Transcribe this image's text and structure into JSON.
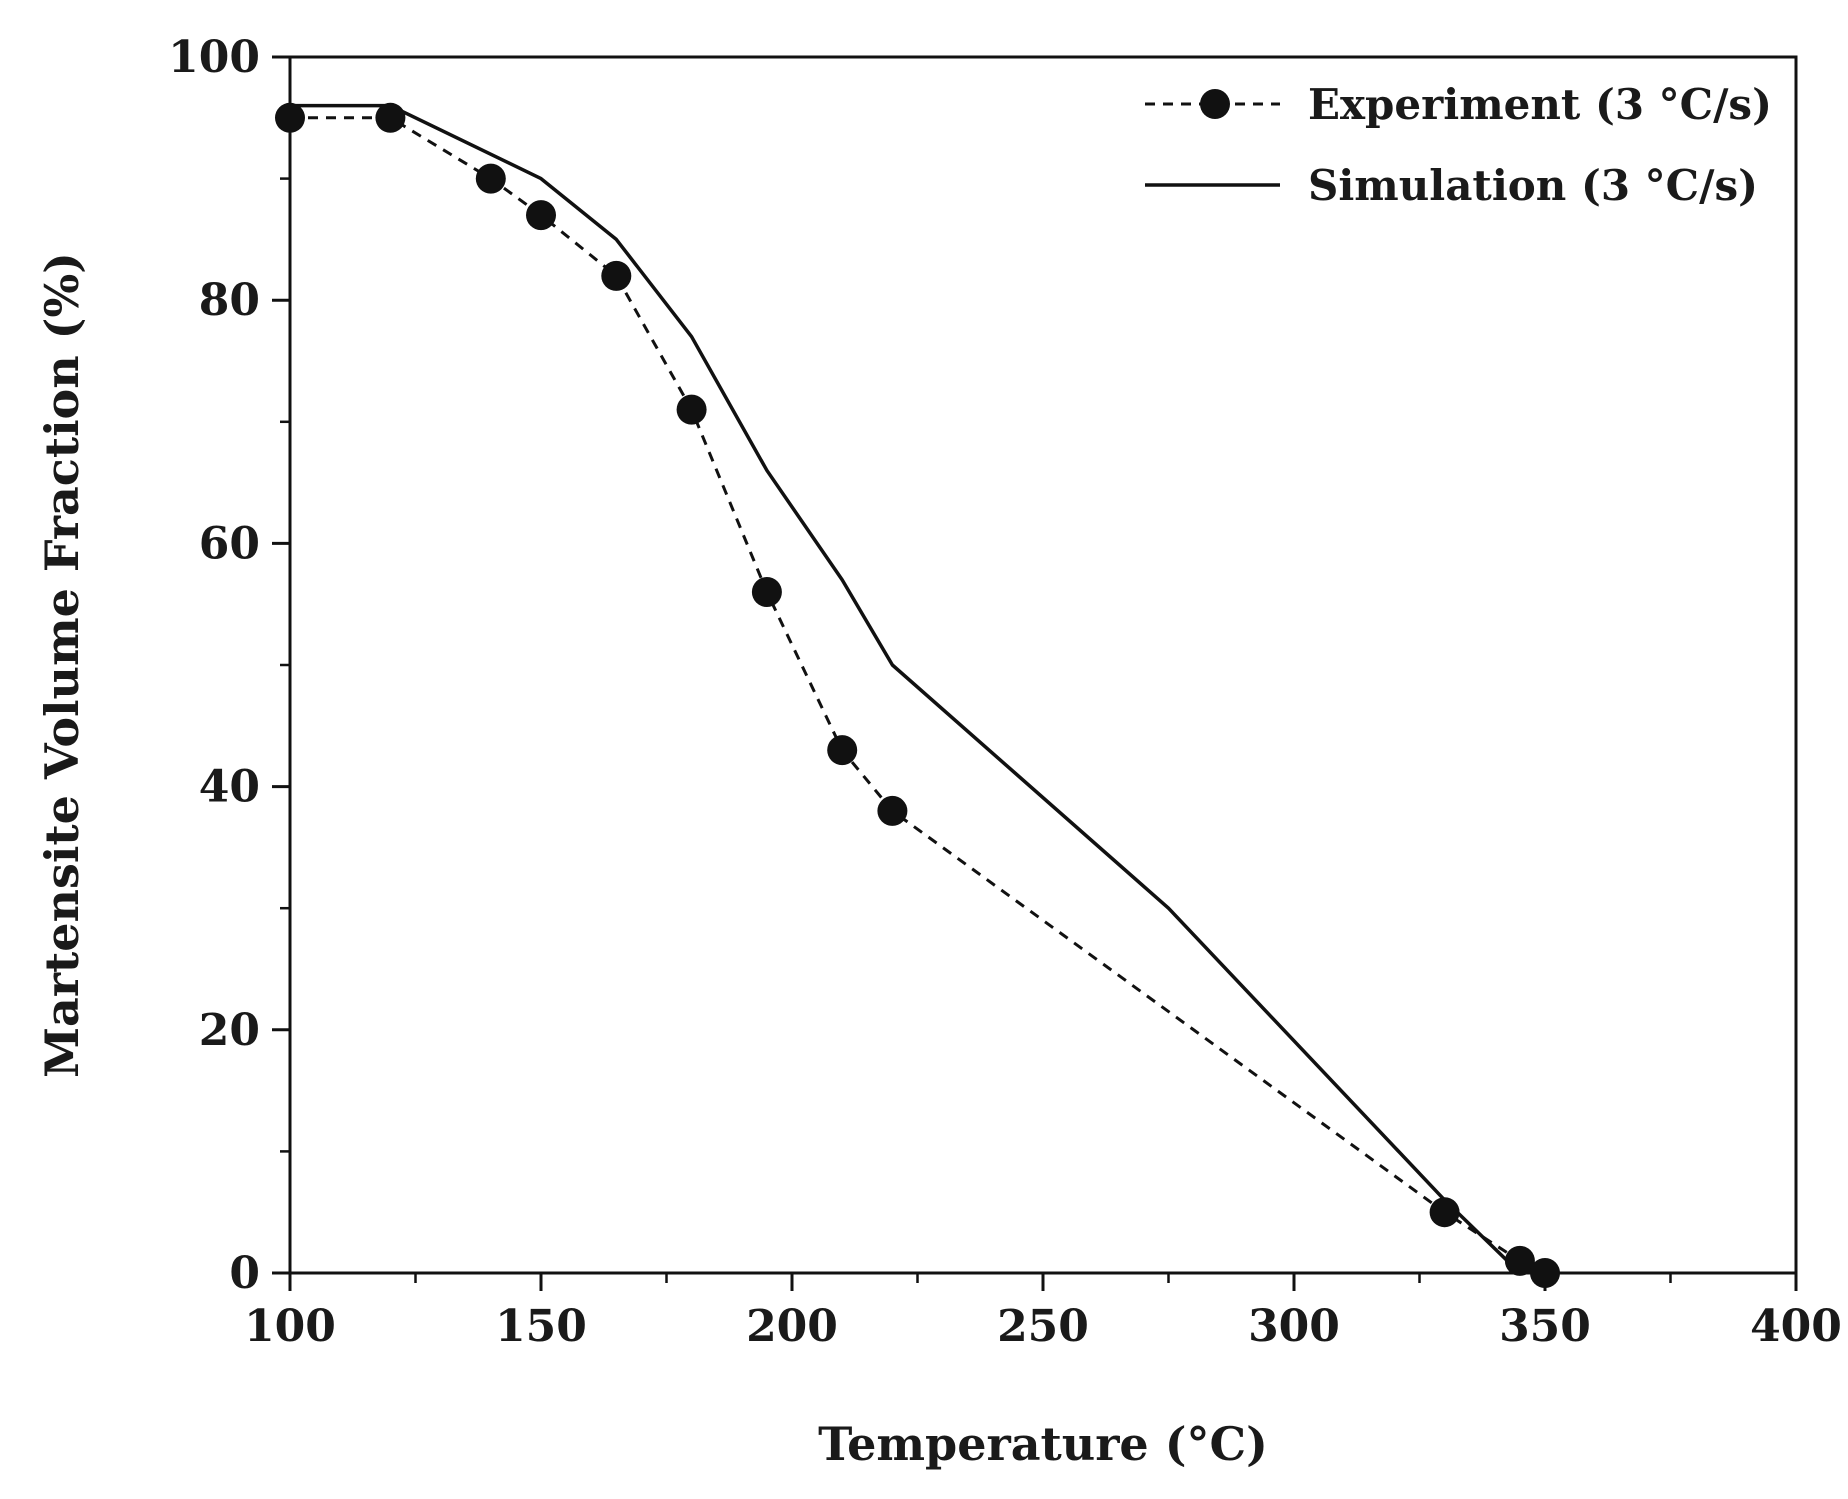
{
  "chart_data": {
    "type": "line",
    "title": "",
    "xlabel": "Temperature (°C)",
    "ylabel": "Martensite Volume Fraction (%)",
    "xlim": [
      100,
      400
    ],
    "ylim": [
      0,
      100
    ],
    "x_ticks_major": [
      100,
      150,
      200,
      250,
      300,
      350,
      400
    ],
    "x_tick_labels": [
      "100",
      "150",
      "200",
      "250",
      "300",
      "350",
      "400"
    ],
    "y_ticks_major": [
      0,
      20,
      40,
      60,
      80,
      100
    ],
    "y_tick_labels": [
      "0",
      "20",
      "40",
      "60",
      "80",
      "100"
    ],
    "grid": false,
    "legend_position": "top-right",
    "series": [
      {
        "name": "Experiment (3 °C/s)",
        "style": "dashed-markers",
        "color": "#111111",
        "x": [
          100,
          120,
          140,
          150,
          165,
          180,
          195,
          210,
          220,
          330,
          345,
          350
        ],
        "y": [
          95,
          95,
          90,
          87,
          82,
          71,
          56,
          43,
          38,
          5,
          1,
          0
        ]
      },
      {
        "name": "Simulation (3 °C/s)",
        "style": "solid",
        "color": "#111111",
        "x": [
          100,
          120,
          150,
          165,
          180,
          195,
          210,
          220,
          275,
          330,
          345
        ],
        "y": [
          96,
          96,
          90,
          85,
          77,
          66,
          57,
          50,
          30,
          6,
          0
        ]
      }
    ]
  }
}
